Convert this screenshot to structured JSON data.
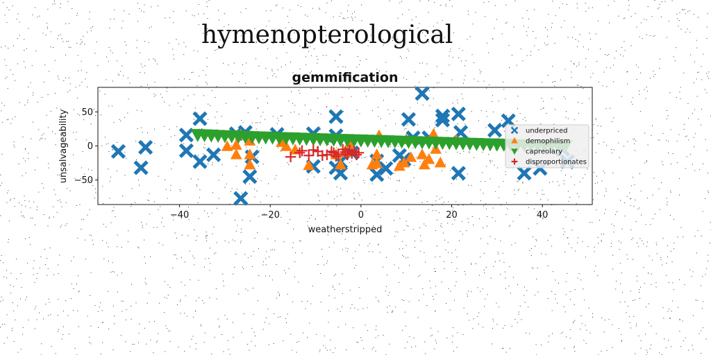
{
  "page": {
    "title": "hymenopterological"
  },
  "chart_data": {
    "type": "scatter",
    "title": "gemmification",
    "xlabel": "weatherstripped",
    "ylabel": "unsalvageability",
    "xlim": [
      -58,
      51
    ],
    "ylim": [
      -86,
      86
    ],
    "xticks": [
      -40,
      -20,
      0,
      20,
      40
    ],
    "yticks": [
      -50,
      0,
      50
    ],
    "grid": false,
    "legend_position": "right",
    "series": [
      {
        "name": "underpriced",
        "color": "#1f77b4",
        "marker": "x",
        "points": [
          [
            -53.5,
            -8
          ],
          [
            -47.5,
            -2
          ],
          [
            -48.5,
            -32
          ],
          [
            -38.5,
            16
          ],
          [
            -38.5,
            -7
          ],
          [
            -35.5,
            40
          ],
          [
            -35.5,
            -23
          ],
          [
            -32.5,
            -13
          ],
          [
            -27.5,
            18
          ],
          [
            -26.5,
            -77
          ],
          [
            -25.5,
            20
          ],
          [
            -24.5,
            -45
          ],
          [
            -24,
            -16
          ],
          [
            -18.5,
            17
          ],
          [
            -10.5,
            18
          ],
          [
            -10.5,
            -30
          ],
          [
            -5.5,
            43
          ],
          [
            -5.5,
            15
          ],
          [
            -5.5,
            -32
          ],
          [
            -4.5,
            -40
          ],
          [
            -4.5,
            -23
          ],
          [
            -2,
            -10
          ],
          [
            3.5,
            -22
          ],
          [
            3.5,
            -42
          ],
          [
            5.5,
            -33
          ],
          [
            8.5,
            -14
          ],
          [
            9.5,
            -20
          ],
          [
            10.5,
            39
          ],
          [
            11.5,
            12
          ],
          [
            13.5,
            77
          ],
          [
            15,
            12
          ],
          [
            18,
            44
          ],
          [
            18,
            38
          ],
          [
            21.5,
            47
          ],
          [
            22,
            20
          ],
          [
            21.5,
            -40
          ],
          [
            29.5,
            23
          ],
          [
            32.5,
            37
          ],
          [
            36,
            -40
          ],
          [
            39.5,
            -33
          ],
          [
            44.5,
            -5
          ],
          [
            45.5,
            -23
          ]
        ]
      },
      {
        "name": "demophilism",
        "color": "#ff7f0e",
        "marker": "triangle-up",
        "points": [
          [
            -29.5,
            -1
          ],
          [
            -27.5,
            1
          ],
          [
            -27.5,
            -13
          ],
          [
            -26.5,
            16
          ],
          [
            -24.5,
            -28
          ],
          [
            -24.5,
            -13
          ],
          [
            -24.5,
            7
          ],
          [
            -17.5,
            5
          ],
          [
            -16.5,
            -1
          ],
          [
            -14.5,
            -6
          ],
          [
            -11.5,
            -29
          ],
          [
            -5.5,
            -13
          ],
          [
            -4.5,
            -28
          ],
          [
            -3.5,
            -10
          ],
          [
            -2.5,
            3
          ],
          [
            2.5,
            -28
          ],
          [
            3.5,
            -13
          ],
          [
            3.5,
            -26
          ],
          [
            4,
            15
          ],
          [
            8.5,
            -30
          ],
          [
            9.5,
            -25
          ],
          [
            10,
            9
          ],
          [
            11,
            -17
          ],
          [
            13.5,
            -13
          ],
          [
            14,
            -28
          ],
          [
            15,
            -20
          ],
          [
            16,
            17
          ],
          [
            16.5,
            -5
          ],
          [
            17.5,
            -25
          ],
          [
            21,
            8
          ]
        ]
      },
      {
        "name": "capreolary",
        "color": "#2ca02c",
        "marker": "triangle-down",
        "points": [
          [
            -36,
            17
          ],
          [
            -34.5,
            16.6
          ],
          [
            -33,
            16.2
          ],
          [
            -31.5,
            15.8
          ],
          [
            -30,
            15.4
          ],
          [
            -28.5,
            15
          ],
          [
            -27,
            14.7
          ],
          [
            -25.5,
            14.3
          ],
          [
            -24,
            14
          ],
          [
            -22.5,
            13.6
          ],
          [
            -21,
            13.3
          ],
          [
            -19.5,
            13
          ],
          [
            -18,
            12.6
          ],
          [
            -16.5,
            12.3
          ],
          [
            -15,
            12
          ],
          [
            -13.5,
            11.7
          ],
          [
            -12,
            11.4
          ],
          [
            -10.5,
            11.1
          ],
          [
            -9,
            10.8
          ],
          [
            -7.5,
            10.5
          ],
          [
            -6,
            10.2
          ],
          [
            -4.5,
            9.9
          ],
          [
            -3,
            9.6
          ],
          [
            -1.5,
            9.3
          ],
          [
            0,
            9
          ],
          [
            1.5,
            8.7
          ],
          [
            3,
            8.4
          ],
          [
            4.5,
            8.1
          ],
          [
            6,
            7.8
          ],
          [
            7.5,
            7.5
          ],
          [
            9,
            7.2
          ],
          [
            10.5,
            6.9
          ],
          [
            12,
            6.6
          ],
          [
            13.5,
            6.3
          ],
          [
            15,
            6
          ],
          [
            16.5,
            5.7
          ],
          [
            18,
            5.4
          ],
          [
            19.5,
            5.1
          ],
          [
            21,
            4.8
          ],
          [
            22.5,
            4.5
          ],
          [
            24,
            4.2
          ],
          [
            25.5,
            3.9
          ],
          [
            27,
            3.6
          ],
          [
            28.5,
            3.3
          ],
          [
            30,
            3
          ],
          [
            31.5,
            2.7
          ],
          [
            33,
            2.4
          ],
          [
            34.5,
            2.1
          ],
          [
            36,
            1.8
          ],
          [
            37.5,
            1.5
          ],
          [
            39,
            1.2
          ],
          [
            40.5,
            0.9
          ],
          [
            42,
            0.6
          ],
          [
            43.5,
            0.3
          ],
          [
            45,
            0
          ]
        ]
      },
      {
        "name": "disproportionates",
        "color": "#d62728",
        "marker": "plus",
        "points": [
          [
            -15.5,
            -16
          ],
          [
            -13.5,
            -10
          ],
          [
            -13,
            -7
          ],
          [
            -11.5,
            -14
          ],
          [
            -10.5,
            -6
          ],
          [
            -9.5,
            -8
          ],
          [
            -8.5,
            -14
          ],
          [
            -7.5,
            -13
          ],
          [
            -6.5,
            -8
          ],
          [
            -6,
            -10
          ],
          [
            -5.5,
            -15
          ],
          [
            -5,
            -12
          ],
          [
            -4,
            -5
          ],
          [
            -3.5,
            -9
          ],
          [
            -3,
            -13
          ],
          [
            -2.5,
            -6
          ],
          [
            -2,
            -11
          ],
          [
            -1.5,
            -8
          ],
          [
            -1,
            -13
          ],
          [
            -0.5,
            -10
          ]
        ]
      }
    ]
  }
}
